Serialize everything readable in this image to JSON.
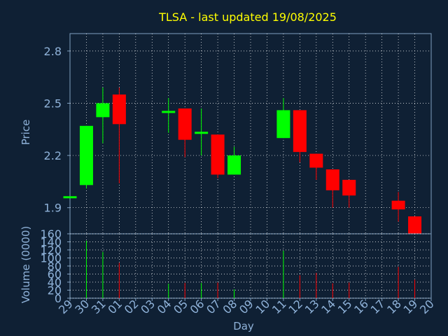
{
  "title": "TLSA - last updated 19/08/2025",
  "colors": {
    "background": "#0f2034",
    "plot_background": "#0f2034",
    "axis": "#7f9fbf",
    "grid": "#ffffff",
    "title": "#ffff00",
    "text": "#8fb2d9",
    "up": "#00ff00",
    "down": "#ff0000"
  },
  "chart_data": [
    {
      "type": "candlestick",
      "ylabel": "Price",
      "xlabel": "",
      "ylim": [
        1.75,
        2.9
      ],
      "yticks": [
        "1.9",
        "2.2",
        "2.5",
        "2.8"
      ],
      "grid": true,
      "x_ticks": [
        "29",
        "30",
        "31",
        "01",
        "02",
        "03",
        "04",
        "05",
        "06",
        "07",
        "08",
        "09",
        "10",
        "11",
        "12",
        "13",
        "14",
        "15",
        "16",
        "17",
        "18",
        "19",
        "20"
      ],
      "candles": [
        {
          "day": "29",
          "open": 1.96,
          "close": 1.96,
          "high": 1.96,
          "low": 1.96
        },
        {
          "day": "30",
          "open": 2.03,
          "close": 2.37,
          "high": 2.37,
          "low": 2.01
        },
        {
          "day": "31",
          "open": 2.42,
          "close": 2.5,
          "high": 2.59,
          "low": 2.27
        },
        {
          "day": "01",
          "open": 2.55,
          "close": 2.38,
          "high": 2.59,
          "low": 2.04
        },
        {
          "day": "04",
          "open": 2.45,
          "close": 2.45,
          "high": 2.53,
          "low": 2.33
        },
        {
          "day": "05",
          "open": 2.47,
          "close": 2.29,
          "high": 2.47,
          "low": 2.19
        },
        {
          "day": "06",
          "open": 2.33,
          "close": 2.33,
          "high": 2.47,
          "low": 2.2
        },
        {
          "day": "07",
          "open": 2.32,
          "close": 2.09,
          "high": 2.32,
          "low": 2.07
        },
        {
          "day": "08",
          "open": 2.09,
          "close": 2.2,
          "high": 2.25,
          "low": 2.09
        },
        {
          "day": "11",
          "open": 2.3,
          "close": 2.46,
          "high": 2.53,
          "low": 2.3
        },
        {
          "day": "12",
          "open": 2.46,
          "close": 2.22,
          "high": 2.46,
          "low": 2.16
        },
        {
          "day": "13",
          "open": 2.21,
          "close": 2.13,
          "high": 2.21,
          "low": 2.06
        },
        {
          "day": "14",
          "open": 2.12,
          "close": 2.0,
          "high": 2.12,
          "low": 1.9
        },
        {
          "day": "15",
          "open": 2.06,
          "close": 1.97,
          "high": 2.06,
          "low": 1.9
        },
        {
          "day": "18",
          "open": 1.94,
          "close": 1.89,
          "high": 1.99,
          "low": 1.82
        },
        {
          "day": "19",
          "open": 1.85,
          "close": 1.75,
          "high": 1.85,
          "low": 1.72
        }
      ]
    },
    {
      "type": "bar",
      "ylabel": "Volume (0000)",
      "xlabel": "Day",
      "ylim": [
        0,
        160
      ],
      "yticks": [
        "0",
        "20",
        "40",
        "60",
        "80",
        "100",
        "120",
        "140",
        "160"
      ],
      "grid": true,
      "x_ticks": [
        "29",
        "30",
        "31",
        "01",
        "02",
        "03",
        "04",
        "05",
        "06",
        "07",
        "08",
        "09",
        "10",
        "11",
        "12",
        "13",
        "14",
        "15",
        "16",
        "17",
        "18",
        "19",
        "20"
      ],
      "bars": [
        {
          "day": "29",
          "value": 0,
          "direction": "down"
        },
        {
          "day": "30",
          "value": 143,
          "direction": "up"
        },
        {
          "day": "31",
          "value": 115,
          "direction": "up"
        },
        {
          "day": "01",
          "value": 88,
          "direction": "down"
        },
        {
          "day": "04",
          "value": 36,
          "direction": "up"
        },
        {
          "day": "05",
          "value": 38,
          "direction": "down"
        },
        {
          "day": "06",
          "value": 38,
          "direction": "up"
        },
        {
          "day": "07",
          "value": 39,
          "direction": "down"
        },
        {
          "day": "08",
          "value": 22,
          "direction": "up"
        },
        {
          "day": "11",
          "value": 118,
          "direction": "up"
        },
        {
          "day": "12",
          "value": 57,
          "direction": "down"
        },
        {
          "day": "13",
          "value": 63,
          "direction": "down"
        },
        {
          "day": "14",
          "value": 37,
          "direction": "down"
        },
        {
          "day": "15",
          "value": 39,
          "direction": "down"
        },
        {
          "day": "18",
          "value": 78,
          "direction": "down"
        },
        {
          "day": "19",
          "value": 46,
          "direction": "down"
        }
      ]
    }
  ]
}
